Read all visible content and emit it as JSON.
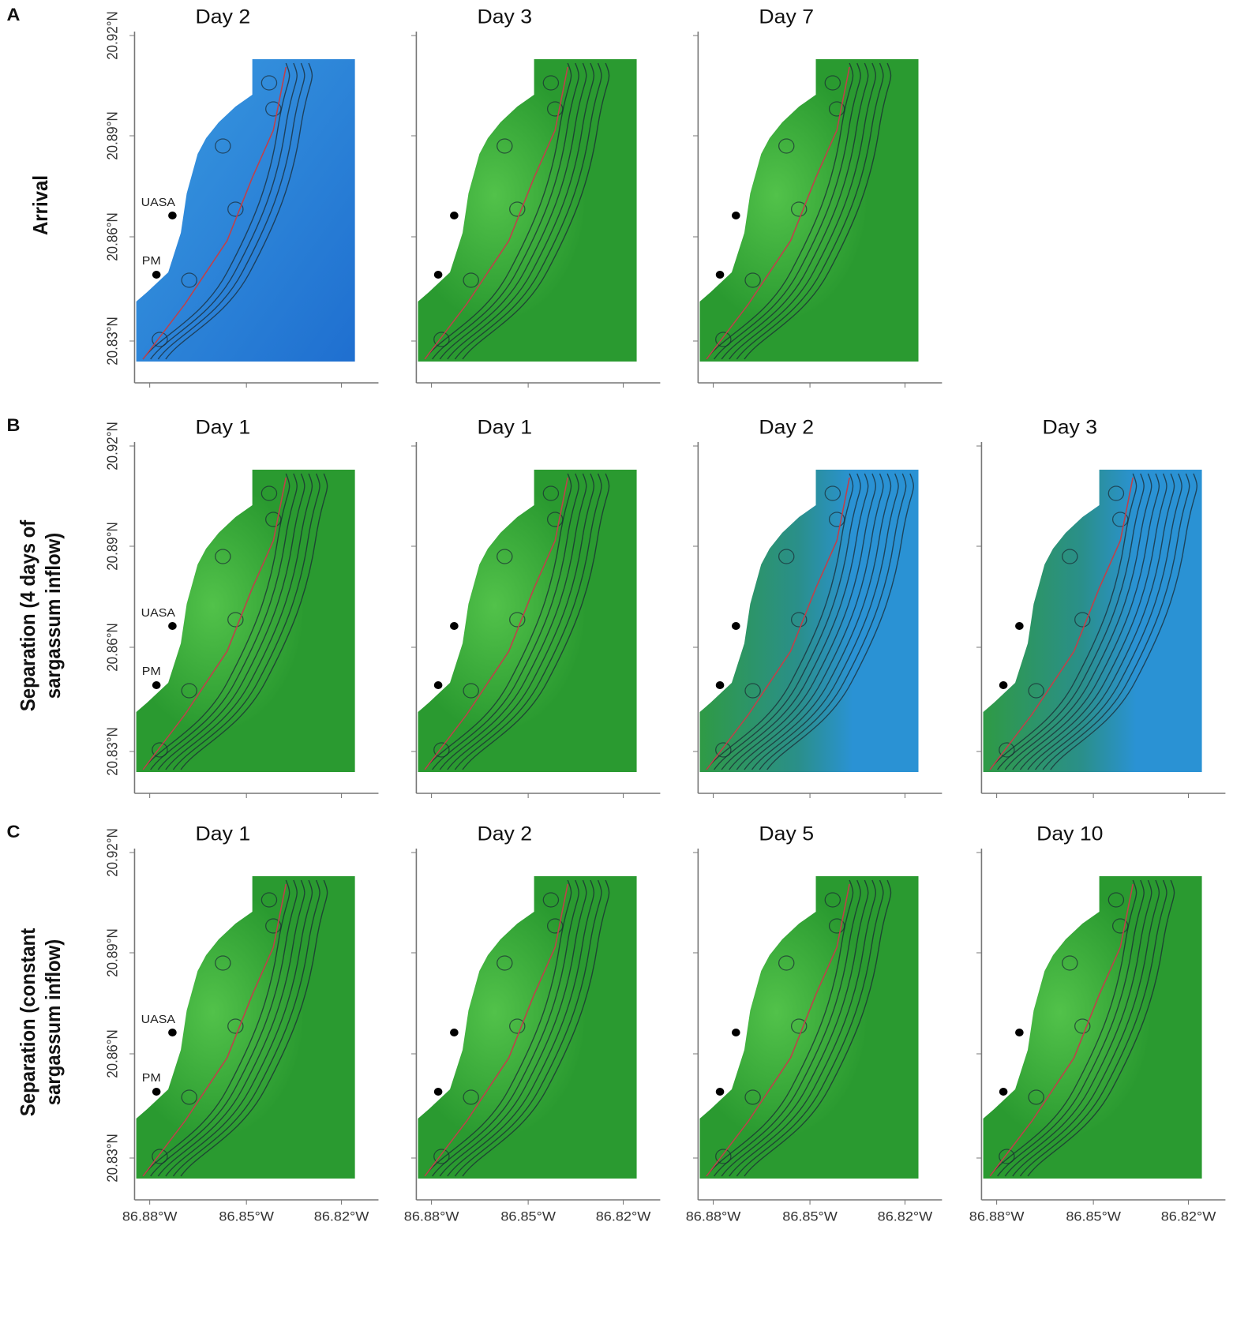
{
  "rows": [
    {
      "letter": "A",
      "label_lines": [
        "Arrival"
      ],
      "panels": [
        {
          "title": "Day 2",
          "sites": [
            "UASA",
            "PM"
          ]
        },
        {
          "title": "Day 3"
        },
        {
          "title": "Day 7"
        }
      ]
    },
    {
      "letter": "B",
      "label_lines": [
        "Separation (4 days of",
        "sargassum inflow)"
      ],
      "panels": [
        {
          "title": "Day 1",
          "sites": [
            "UASA",
            "PM"
          ]
        },
        {
          "title": "Day 1"
        },
        {
          "title": "Day 2"
        },
        {
          "title": "Day 3"
        }
      ]
    },
    {
      "letter": "C",
      "label_lines": [
        "Separation (constant",
        "sargassum inflow)"
      ],
      "panels": [
        {
          "title": "Day 1",
          "sites": [
            "UASA",
            "PM"
          ]
        },
        {
          "title": "Day 2"
        },
        {
          "title": "Day 5"
        },
        {
          "title": "Day 10"
        }
      ]
    }
  ],
  "y_ticks": [
    "20.92°N",
    "20.89°N",
    "20.86°N",
    "20.83°N"
  ],
  "x_ticks": [
    "86.88°W",
    "86.85°W",
    "86.82°W"
  ]
}
